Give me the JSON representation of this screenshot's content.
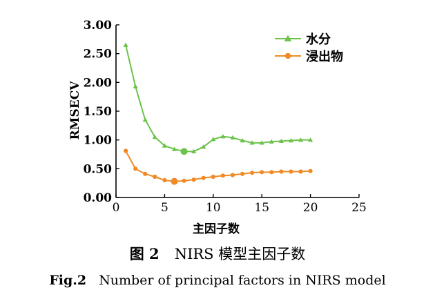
{
  "chart_data": {
    "type": "line",
    "xlabel": "主因子数",
    "ylabel": "RMSECV",
    "xlim": [
      0,
      25
    ],
    "ylim": [
      0,
      3
    ],
    "xticks": [
      0,
      5,
      10,
      15,
      20,
      25
    ],
    "xtick_labels": [
      "0",
      "5",
      "10",
      "15",
      "20",
      "25"
    ],
    "yticks": [
      0,
      0.5,
      1,
      1.5,
      2,
      2.5,
      3
    ],
    "ytick_labels": [
      "0.00",
      "0.50",
      "1.00",
      "1.50",
      "2.00",
      "2.50",
      "3.00"
    ],
    "grid": false,
    "legend_position": "top-right",
    "series": [
      {
        "name": "水分",
        "color": "#6cc24a",
        "marker": "triangle",
        "x": [
          1,
          2,
          3,
          4,
          5,
          6,
          7,
          8,
          9,
          10,
          11,
          12,
          13,
          14,
          15,
          16,
          17,
          18,
          19,
          20
        ],
        "values": [
          2.65,
          1.93,
          1.35,
          1.05,
          0.9,
          0.84,
          0.8,
          0.8,
          0.88,
          1.01,
          1.06,
          1.04,
          0.99,
          0.95,
          0.95,
          0.97,
          0.98,
          0.99,
          1.0,
          1.0
        ],
        "highlight_x": 7
      },
      {
        "name": "浸出物",
        "color": "#f08a24",
        "marker": "circle",
        "x": [
          1,
          2,
          3,
          4,
          5,
          6,
          7,
          8,
          9,
          10,
          11,
          12,
          13,
          14,
          15,
          16,
          17,
          18,
          19,
          20
        ],
        "values": [
          0.81,
          0.5,
          0.41,
          0.36,
          0.3,
          0.28,
          0.29,
          0.31,
          0.34,
          0.36,
          0.38,
          0.39,
          0.41,
          0.43,
          0.44,
          0.44,
          0.45,
          0.45,
          0.45,
          0.46
        ],
        "highlight_x": 6
      }
    ]
  },
  "caption_cn": {
    "label": "图 2",
    "text": "NIRS 模型主因子数"
  },
  "caption_en": {
    "label": "Fig.2",
    "text": "Number of principal factors in NIRS model"
  }
}
